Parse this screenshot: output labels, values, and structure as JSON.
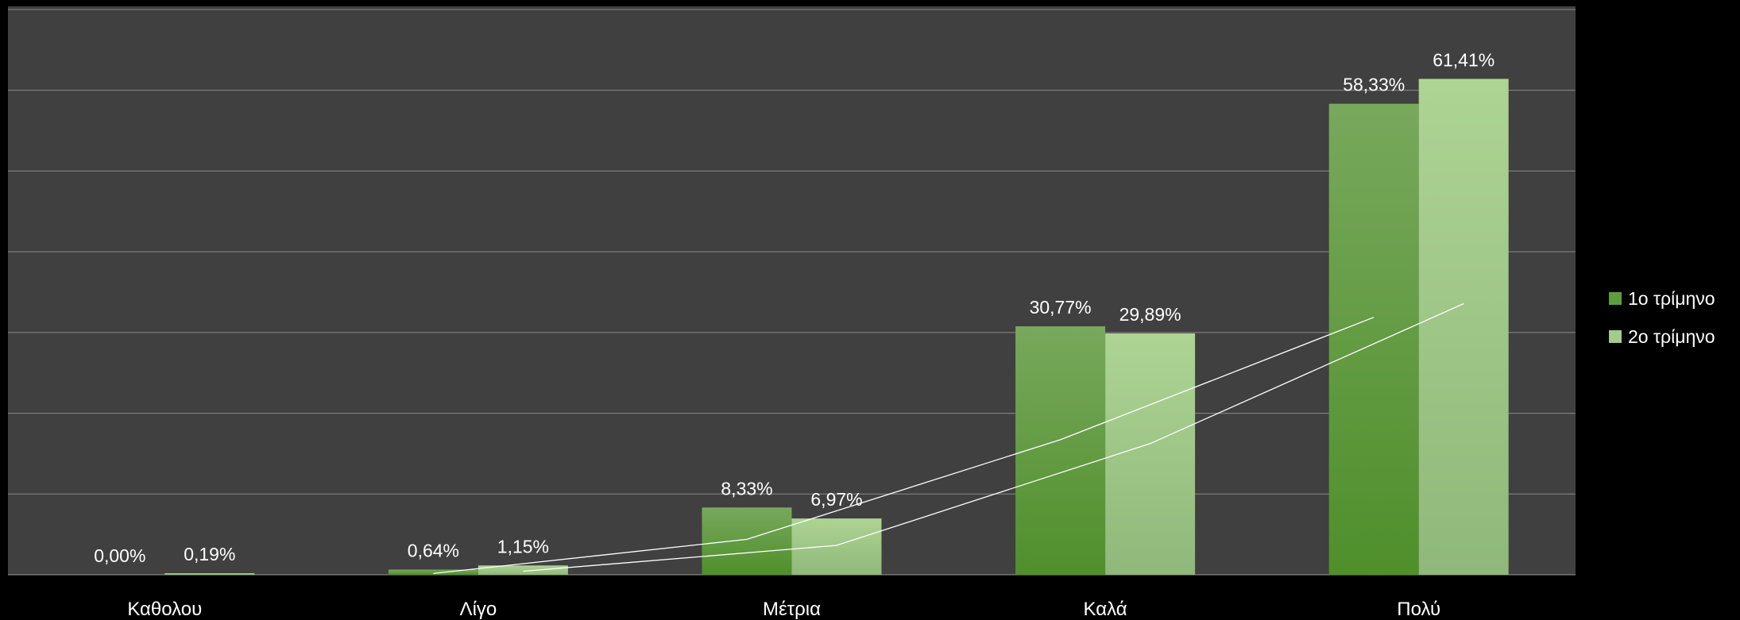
{
  "chart_data": {
    "type": "bar",
    "categories": [
      "Καθολου",
      "Λίγο",
      "Μέτρια",
      "Καλά",
      "Πολύ"
    ],
    "series": [
      {
        "name": "1ο τρίμηνο",
        "values": [
          0.0,
          0.64,
          8.33,
          30.77,
          58.33
        ],
        "labels": [
          "0,00%",
          "0,64%",
          "8,33%",
          "30,77%",
          "58,33%"
        ],
        "color": "#5e9e3a"
      },
      {
        "name": "2ο τρίμηνο",
        "values": [
          0.19,
          1.15,
          6.97,
          29.89,
          61.41
        ],
        "labels": [
          "0,19%",
          "1,15%",
          "6,97%",
          "29,89%",
          "61,41%"
        ],
        "color": "#a3cc8c"
      }
    ],
    "trendlines": true,
    "ylim": [
      0,
      70
    ],
    "grid": true,
    "legend_position": "right",
    "plot_background": "#404040",
    "page_background": "#000000"
  }
}
